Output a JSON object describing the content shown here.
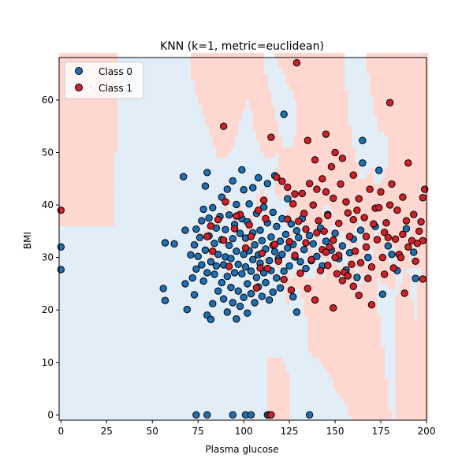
{
  "chart_data": {
    "type": "scatter",
    "title": "KNN (k=1, metric=euclidean)",
    "xlabel": "Plasma glucose",
    "ylabel": "BMI",
    "xlim": [
      -1,
      200
    ],
    "ylim": [
      -1,
      68.1
    ],
    "xticks": [
      "0",
      "25",
      "50",
      "75",
      "100",
      "125",
      "150",
      "175",
      "200"
    ],
    "yticks": [
      "0",
      "10",
      "20",
      "30",
      "40",
      "50",
      "60"
    ],
    "grid": false,
    "legend_position": "top-left",
    "colors": {
      "class0": "#1f6fb4",
      "class1": "#d0202a",
      "region0": "#e2eef7",
      "region1": "#fed8d0",
      "marker_edge": "#000000"
    },
    "series": [
      {
        "name": "Class 0",
        "points": [
          [
            0,
            32.0
          ],
          [
            0,
            27.7
          ],
          [
            56,
            24.1
          ],
          [
            57,
            21.8
          ],
          [
            57,
            32.8
          ],
          [
            62,
            32.6
          ],
          [
            67,
            45.4
          ],
          [
            68,
            25.0
          ],
          [
            68,
            35.2
          ],
          [
            69,
            20.1
          ],
          [
            71,
            30.5
          ],
          [
            72,
            26.1
          ],
          [
            73,
            22.9
          ],
          [
            73,
            32.4
          ],
          [
            74,
            27.8
          ],
          [
            74,
            35.4
          ],
          [
            75,
            30.2
          ],
          [
            76,
            33.8
          ],
          [
            77,
            28.6
          ],
          [
            77,
            37.0
          ],
          [
            78,
            25.5
          ],
          [
            78,
            39.2
          ],
          [
            79,
            31.4
          ],
          [
            79,
            43.6
          ],
          [
            80,
            19.0
          ],
          [
            80,
            27.1
          ],
          [
            80,
            46.2
          ],
          [
            81,
            34.1
          ],
          [
            81,
            37.5
          ],
          [
            82,
            29.2
          ],
          [
            82,
            18.2
          ],
          [
            83,
            21.2
          ],
          [
            83,
            39.5
          ],
          [
            84,
            26.8
          ],
          [
            84,
            32.7
          ],
          [
            85,
            28.4
          ],
          [
            85,
            35.6
          ],
          [
            86,
            23.6
          ],
          [
            86,
            30.6
          ],
          [
            87,
            37.8
          ],
          [
            88,
            25.2
          ],
          [
            88,
            33.4
          ],
          [
            88,
            41.5
          ],
          [
            89,
            22.1
          ],
          [
            89,
            28.6
          ],
          [
            90,
            30.1
          ],
          [
            90,
            35.3
          ],
          [
            91,
            19.6
          ],
          [
            91,
            26.4
          ],
          [
            91,
            43.0
          ],
          [
            92,
            32.3
          ],
          [
            92,
            38.1
          ],
          [
            93,
            24.3
          ],
          [
            93,
            29.8
          ],
          [
            94,
            21.4
          ],
          [
            94,
            33.6
          ],
          [
            94,
            44.6
          ],
          [
            95,
            27.1
          ],
          [
            95,
            36.3
          ],
          [
            96,
            18.3
          ],
          [
            96,
            31.2
          ],
          [
            96,
            40.1
          ],
          [
            97,
            23.6
          ],
          [
            97,
            28.7
          ],
          [
            98,
            34.6
          ],
          [
            98,
            20.7
          ],
          [
            99,
            26.9
          ],
          [
            99,
            37.4
          ],
          [
            99,
            46.7
          ],
          [
            100,
            30.6
          ],
          [
            100,
            22.4
          ],
          [
            100,
            42.9
          ],
          [
            101,
            28.2
          ],
          [
            101,
            33.7
          ],
          [
            102,
            25.0
          ],
          [
            102,
            36.8
          ],
          [
            102,
            19.4
          ],
          [
            103,
            31.3
          ],
          [
            103,
            40.2
          ],
          [
            104,
            27.4
          ],
          [
            104,
            23.1
          ],
          [
            105,
            34.7
          ],
          [
            105,
            29.6
          ],
          [
            105,
            43.3
          ],
          [
            106,
            21.4
          ],
          [
            106,
            32.4
          ],
          [
            107,
            26.2
          ],
          [
            107,
            38.4
          ],
          [
            108,
            30.5
          ],
          [
            108,
            24.4
          ],
          [
            108,
            45.2
          ],
          [
            109,
            35.2
          ],
          [
            109,
            28.9
          ],
          [
            110,
            22.6
          ],
          [
            110,
            33.2
          ],
          [
            111,
            27.1
          ],
          [
            111,
            39.6
          ],
          [
            112,
            31.6
          ],
          [
            112,
            25.2
          ],
          [
            113,
            36.6
          ],
          [
            113,
            44.1
          ],
          [
            114,
            29.4
          ],
          [
            114,
            21.9
          ],
          [
            115,
            33.9
          ],
          [
            115,
            27.5
          ],
          [
            116,
            38.6
          ],
          [
            116,
            23.4
          ],
          [
            117,
            31.1
          ],
          [
            117,
            45.6
          ],
          [
            118,
            26.1
          ],
          [
            118,
            35.9
          ],
          [
            119,
            29.8
          ],
          [
            120,
            33.1
          ],
          [
            120,
            24.2
          ],
          [
            121,
            37.4
          ],
          [
            121,
            30.6
          ],
          [
            122,
            27.4
          ],
          [
            122,
            57.3
          ],
          [
            123,
            34.4
          ],
          [
            124,
            31.8
          ],
          [
            124,
            41.2
          ],
          [
            125,
            28.4
          ],
          [
            126,
            36.4
          ],
          [
            127,
            32.5
          ],
          [
            127,
            22.5
          ],
          [
            128,
            30.1
          ],
          [
            129,
            35.1
          ],
          [
            129,
            19.6
          ],
          [
            130,
            33.8
          ],
          [
            131,
            29.2
          ],
          [
            132,
            37.4
          ],
          [
            133,
            31.5
          ],
          [
            134,
            27.9
          ],
          [
            136,
            34.2
          ],
          [
            137,
            29.4
          ],
          [
            138,
            32.6
          ],
          [
            140,
            30.2
          ],
          [
            142,
            35.6
          ],
          [
            143,
            28.4
          ],
          [
            145,
            33.1
          ],
          [
            146,
            38.2
          ],
          [
            148,
            31.4
          ],
          [
            150,
            34.6
          ],
          [
            152,
            29.8
          ],
          [
            154,
            32.2
          ],
          [
            156,
            27.6
          ],
          [
            158,
            30.9
          ],
          [
            160,
            33.5
          ],
          [
            162,
            26.2
          ],
          [
            164,
            35.2
          ],
          [
            165,
            52.3
          ],
          [
            165,
            48.0
          ],
          [
            168,
            30.0
          ],
          [
            172,
            35.9
          ],
          [
            174,
            46.6
          ],
          [
            176,
            23.0
          ],
          [
            179,
            32.2
          ],
          [
            181,
            30.6
          ],
          [
            184,
            27.5
          ],
          [
            189,
            35.5
          ],
          [
            193,
            31.0
          ],
          [
            194,
            26.0
          ],
          [
            74,
            0
          ],
          [
            80,
            0
          ],
          [
            94,
            0
          ],
          [
            101,
            0
          ],
          [
            104,
            0
          ],
          [
            113,
            0
          ],
          [
            136,
            0
          ]
        ]
      },
      {
        "name": "Class 1",
        "points": [
          [
            0,
            39.0
          ],
          [
            89,
            55.0
          ],
          [
            129,
            67.1
          ],
          [
            180,
            59.5
          ],
          [
            115,
            52.9
          ],
          [
            135,
            52.3
          ],
          [
            143,
            45.0
          ],
          [
            148,
            47.3
          ],
          [
            150,
            50.0
          ],
          [
            154,
            48.9
          ],
          [
            132,
            42.2
          ],
          [
            136,
            44.1
          ],
          [
            140,
            43.0
          ],
          [
            146,
            38.0
          ],
          [
            149,
            41.3
          ],
          [
            152,
            36.5
          ],
          [
            156,
            40.6
          ],
          [
            160,
            37.2
          ],
          [
            163,
            41.2
          ],
          [
            166,
            37.6
          ],
          [
            169,
            43.0
          ],
          [
            172,
            39.4
          ],
          [
            175,
            42.5
          ],
          [
            178,
            36.6
          ],
          [
            181,
            44.0
          ],
          [
            184,
            39.0
          ],
          [
            187,
            41.5
          ],
          [
            190,
            48.0
          ],
          [
            193,
            38.2
          ],
          [
            196,
            35.0
          ],
          [
            198,
            41.4
          ],
          [
            199,
            43.0
          ],
          [
            198,
            33.2
          ],
          [
            197,
            36.8
          ],
          [
            194,
            29.3
          ],
          [
            190,
            32.0
          ],
          [
            187,
            34.4
          ],
          [
            185,
            30.6
          ],
          [
            182,
            28.0
          ],
          [
            179,
            33.8
          ],
          [
            176,
            30.0
          ],
          [
            173,
            33.4
          ],
          [
            170,
            28.2
          ],
          [
            167,
            32.0
          ],
          [
            164,
            29.0
          ],
          [
            161,
            31.2
          ],
          [
            158,
            34.0
          ],
          [
            155,
            27.2
          ],
          [
            152,
            30.4
          ],
          [
            149,
            33.3
          ],
          [
            146,
            28.5
          ],
          [
            143,
            31.5
          ],
          [
            140,
            34.7
          ],
          [
            137,
            29.6
          ],
          [
            134,
            32.8
          ],
          [
            131,
            27.0
          ],
          [
            128,
            30.4
          ],
          [
            125,
            33.0
          ],
          [
            122,
            25.8
          ],
          [
            119,
            29.3
          ],
          [
            116,
            32.3
          ],
          [
            113,
            27.9
          ],
          [
            110,
            30.8
          ],
          [
            107,
            24.2
          ],
          [
            104,
            34.0
          ],
          [
            101,
            31.8
          ],
          [
            98,
            38.2
          ],
          [
            95,
            35.5
          ],
          [
            92,
            28.3
          ],
          [
            89,
            33.3
          ],
          [
            86,
            37.2
          ],
          [
            83,
            31.2
          ],
          [
            80,
            34.0
          ],
          [
            82,
            36.0
          ],
          [
            90,
            40.6
          ],
          [
            96,
            37.9
          ],
          [
            103,
            36.2
          ],
          [
            108,
            39.0
          ],
          [
            112,
            37.4
          ],
          [
            118,
            45.3
          ],
          [
            124,
            43.4
          ],
          [
            127,
            40.2
          ],
          [
            130,
            36.9
          ],
          [
            133,
            38.4
          ],
          [
            138,
            40.0
          ],
          [
            141,
            37.0
          ],
          [
            144,
            35.0
          ],
          [
            147,
            32.0
          ],
          [
            151,
            26.9
          ],
          [
            154,
            25.6
          ],
          [
            157,
            26.5
          ],
          [
            160,
            24.5
          ],
          [
            163,
            22.8
          ],
          [
            170,
            21.0
          ],
          [
            188,
            23.2
          ],
          [
            198,
            25.9
          ],
          [
            135,
            24.1
          ],
          [
            139,
            21.9
          ],
          [
            149,
            20.4
          ],
          [
            126,
            23.8
          ],
          [
            114,
            0
          ],
          [
            115,
            0
          ],
          [
            145,
            42.5
          ],
          [
            153,
            44.0
          ],
          [
            157,
            38.5
          ],
          [
            162,
            39.0
          ],
          [
            167,
            34.0
          ],
          [
            171,
            36.4
          ],
          [
            174,
            39.5
          ],
          [
            177,
            34.8
          ],
          [
            183,
            33.5
          ],
          [
            186,
            30.0
          ],
          [
            189,
            37.0
          ],
          [
            192,
            33.2
          ],
          [
            195,
            32.7
          ],
          [
            111,
            40.9
          ],
          [
            121,
            44.5
          ],
          [
            128,
            42.1
          ],
          [
            134,
            35.4
          ],
          [
            142,
            27.5
          ],
          [
            150,
            30.0
          ],
          [
            159,
            28.7
          ],
          [
            168,
            26.0
          ],
          [
            139,
            48.6
          ],
          [
            145,
            53.5
          ],
          [
            160,
            45.7
          ],
          [
            180,
            40.0
          ],
          [
            177,
            26.8
          ],
          [
            145,
            31.0
          ],
          [
            124,
            37.3
          ],
          [
            117,
            32.5
          ],
          [
            109,
            28.0
          ]
        ]
      }
    ],
    "regions_class1": [
      {
        "x": [
          -1,
          30
        ],
        "y": [
          35.8,
          68.1
        ]
      },
      {
        "x": [
          108,
          117
        ],
        "y": [
          -1,
          10.5
        ]
      },
      {
        "x": [
          181,
          200
        ],
        "y": [
          -1,
          27
        ]
      },
      {
        "x": [
          162,
          165
        ],
        "y": [
          -1,
          25
        ]
      }
    ]
  }
}
